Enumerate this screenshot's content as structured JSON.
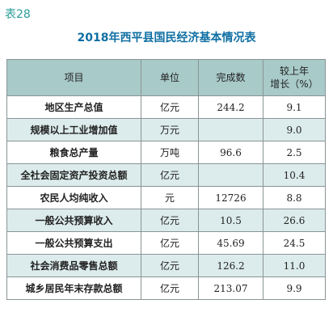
{
  "table_label": "表28",
  "title": "2018年西平县国民经济基本情况表",
  "headers": {
    "item": "项目",
    "unit": "单位",
    "completed": "完成数",
    "growth_line1": "较上年",
    "growth_line2": "增长（%）"
  },
  "rows": [
    {
      "item": "地区生产总值",
      "unit": "亿元",
      "completed": "244.2",
      "growth": "9.1"
    },
    {
      "item": "规模以上工业增加值",
      "unit": "万元",
      "completed": "",
      "growth": "9.0"
    },
    {
      "item": "粮食总产量",
      "unit": "万吨",
      "completed": "96.6",
      "growth": "2.5"
    },
    {
      "item": "全社会固定资产投资总额",
      "unit": "亿元",
      "completed": "",
      "growth": "10.4"
    },
    {
      "item": "农民人均纯收入",
      "unit": "元",
      "completed": "12726",
      "growth": "8.8"
    },
    {
      "item": "一般公共预算收入",
      "unit": "亿元",
      "completed": "10.5",
      "growth": "26.6"
    },
    {
      "item": "一般公共预算支出",
      "unit": "亿元",
      "completed": "45.69",
      "growth": "24.5"
    },
    {
      "item": "社会消费品零售总额",
      "unit": "亿元",
      "completed": "126.2",
      "growth": "11.0"
    },
    {
      "item": "城乡居民年末存款总额",
      "unit": "亿元",
      "completed": "213.07",
      "growth": "9.9"
    }
  ],
  "colors": {
    "header_bg": "#a8cac9",
    "alt_row_bg": "#dcebeb",
    "title_color": "#0f6fa3",
    "label_color": "#2a9d9a"
  }
}
